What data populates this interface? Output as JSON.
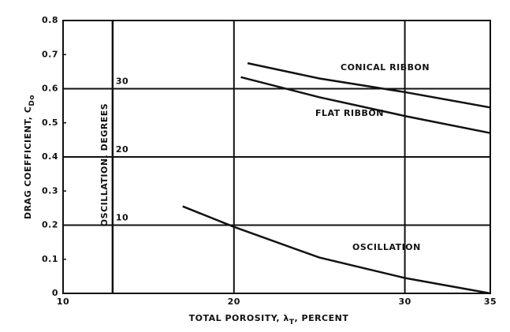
{
  "chart_data": {
    "type": "line",
    "x_label_parts": [
      "TOTAL POROSITY, λ",
      "T",
      ", PERCENT"
    ],
    "y_label_parts": [
      "DRAG COEFFICIENT, C",
      "Do"
    ],
    "y2_label": "OSCILLATION, DEGREES",
    "y2_axis_x": 12.9,
    "xlim": [
      10,
      35
    ],
    "xticks": [
      10,
      20,
      30,
      35
    ],
    "ylim": [
      0,
      0.8
    ],
    "yticks": [
      0.0,
      0.1,
      0.2,
      0.3,
      0.4,
      0.5,
      0.6,
      0.7,
      0.8
    ],
    "y2lim": [
      0,
      40
    ],
    "y2ticks": [
      10,
      20,
      30
    ],
    "grid": true,
    "series": [
      {
        "name": "CONICAL RIBBON",
        "color": "#111111",
        "x": [
          20.8,
          25,
          30,
          35
        ],
        "values": [
          0.675,
          0.63,
          0.59,
          0.545
        ]
      },
      {
        "name": "FLAT RIBBON",
        "color": "#111111",
        "x": [
          20.4,
          25,
          30,
          35
        ],
        "values": [
          0.634,
          0.575,
          0.52,
          0.47
        ]
      },
      {
        "name": "OSCILLATION",
        "color": "#111111",
        "x": [
          17,
          20,
          25,
          30,
          35
        ],
        "values": [
          0.255,
          0.195,
          0.105,
          0.045,
          0
        ],
        "axis": "y"
      }
    ]
  }
}
